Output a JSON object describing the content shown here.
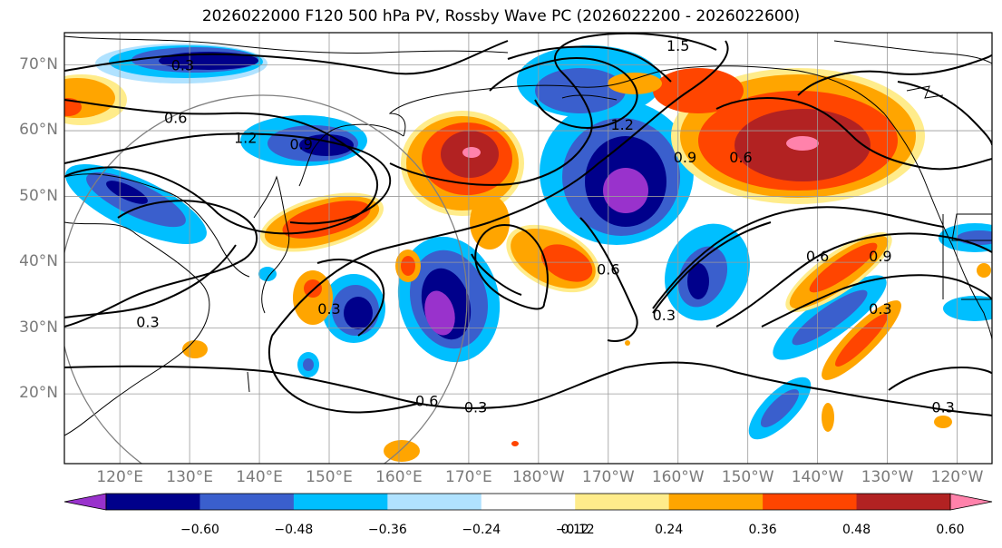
{
  "title": "2026022000 F120 500 hPa PV, Rossby Wave PC (2026022200 - 2026022600)",
  "lat_ticks": [
    {
      "label": "70°N",
      "lat": 70
    },
    {
      "label": "60°N",
      "lat": 60
    },
    {
      "label": "50°N",
      "lat": 50
    },
    {
      "label": "40°N",
      "lat": 40
    },
    {
      "label": "30°N",
      "lat": 30
    },
    {
      "label": "20°N",
      "lat": 20
    }
  ],
  "lon_ticks": [
    {
      "label": "120°E",
      "lon": 120
    },
    {
      "label": "130°E",
      "lon": 130
    },
    {
      "label": "140°E",
      "lon": 140
    },
    {
      "label": "150°E",
      "lon": 150
    },
    {
      "label": "160°E",
      "lon": 160
    },
    {
      "label": "170°E",
      "lon": 170
    },
    {
      "label": "180°W",
      "lon": 180
    },
    {
      "label": "170°W",
      "lon": 190
    },
    {
      "label": "160°W",
      "lon": 200
    },
    {
      "label": "150°W",
      "lon": 210
    },
    {
      "label": "140°W",
      "lon": 220
    },
    {
      "label": "130°W",
      "lon": 230
    },
    {
      "label": "120°W",
      "lon": 240
    }
  ],
  "colorbar": {
    "labels": [
      "−0.60",
      "−0.48",
      "−0.36",
      "−0.24",
      "−0.12",
      "0.12",
      "0.24",
      "0.36",
      "0.48",
      "0.60"
    ],
    "colors": [
      "#9932cc",
      "#00008b",
      "#3a5fcd",
      "#00bfff",
      "#b0e2ff",
      "#ffffff",
      "#ffec8b",
      "#ffa500",
      "#ff4500",
      "#b22222",
      "#ff82ab"
    ]
  },
  "contour_labels": [
    {
      "text": "0.3",
      "lon": 129,
      "lat": 70
    },
    {
      "text": "1.5",
      "lon": 200,
      "lat": 73
    },
    {
      "text": "0.6",
      "lon": 128,
      "lat": 62
    },
    {
      "text": "1.2",
      "lon": 138,
      "lat": 59
    },
    {
      "text": "0.9",
      "lon": 146,
      "lat": 58
    },
    {
      "text": "1.2",
      "lon": 192,
      "lat": 61
    },
    {
      "text": "0.9",
      "lon": 201,
      "lat": 56
    },
    {
      "text": "0.6",
      "lon": 209,
      "lat": 56
    },
    {
      "text": "0.6",
      "lon": 220,
      "lat": 41
    },
    {
      "text": "0.9",
      "lon": 229,
      "lat": 41
    },
    {
      "text": "0.3",
      "lon": 229,
      "lat": 33
    },
    {
      "text": "0.3",
      "lon": 150,
      "lat": 33
    },
    {
      "text": "0.3",
      "lon": 124,
      "lat": 31
    },
    {
      "text": "0.6",
      "lon": 190,
      "lat": 39
    },
    {
      "text": "0.3",
      "lon": 198,
      "lat": 32
    },
    {
      "text": "0.6",
      "lon": 164,
      "lat": 19
    },
    {
      "text": "0.3",
      "lon": 171,
      "lat": 18
    },
    {
      "text": "0.3",
      "lon": 238,
      "lat": 18
    }
  ]
}
